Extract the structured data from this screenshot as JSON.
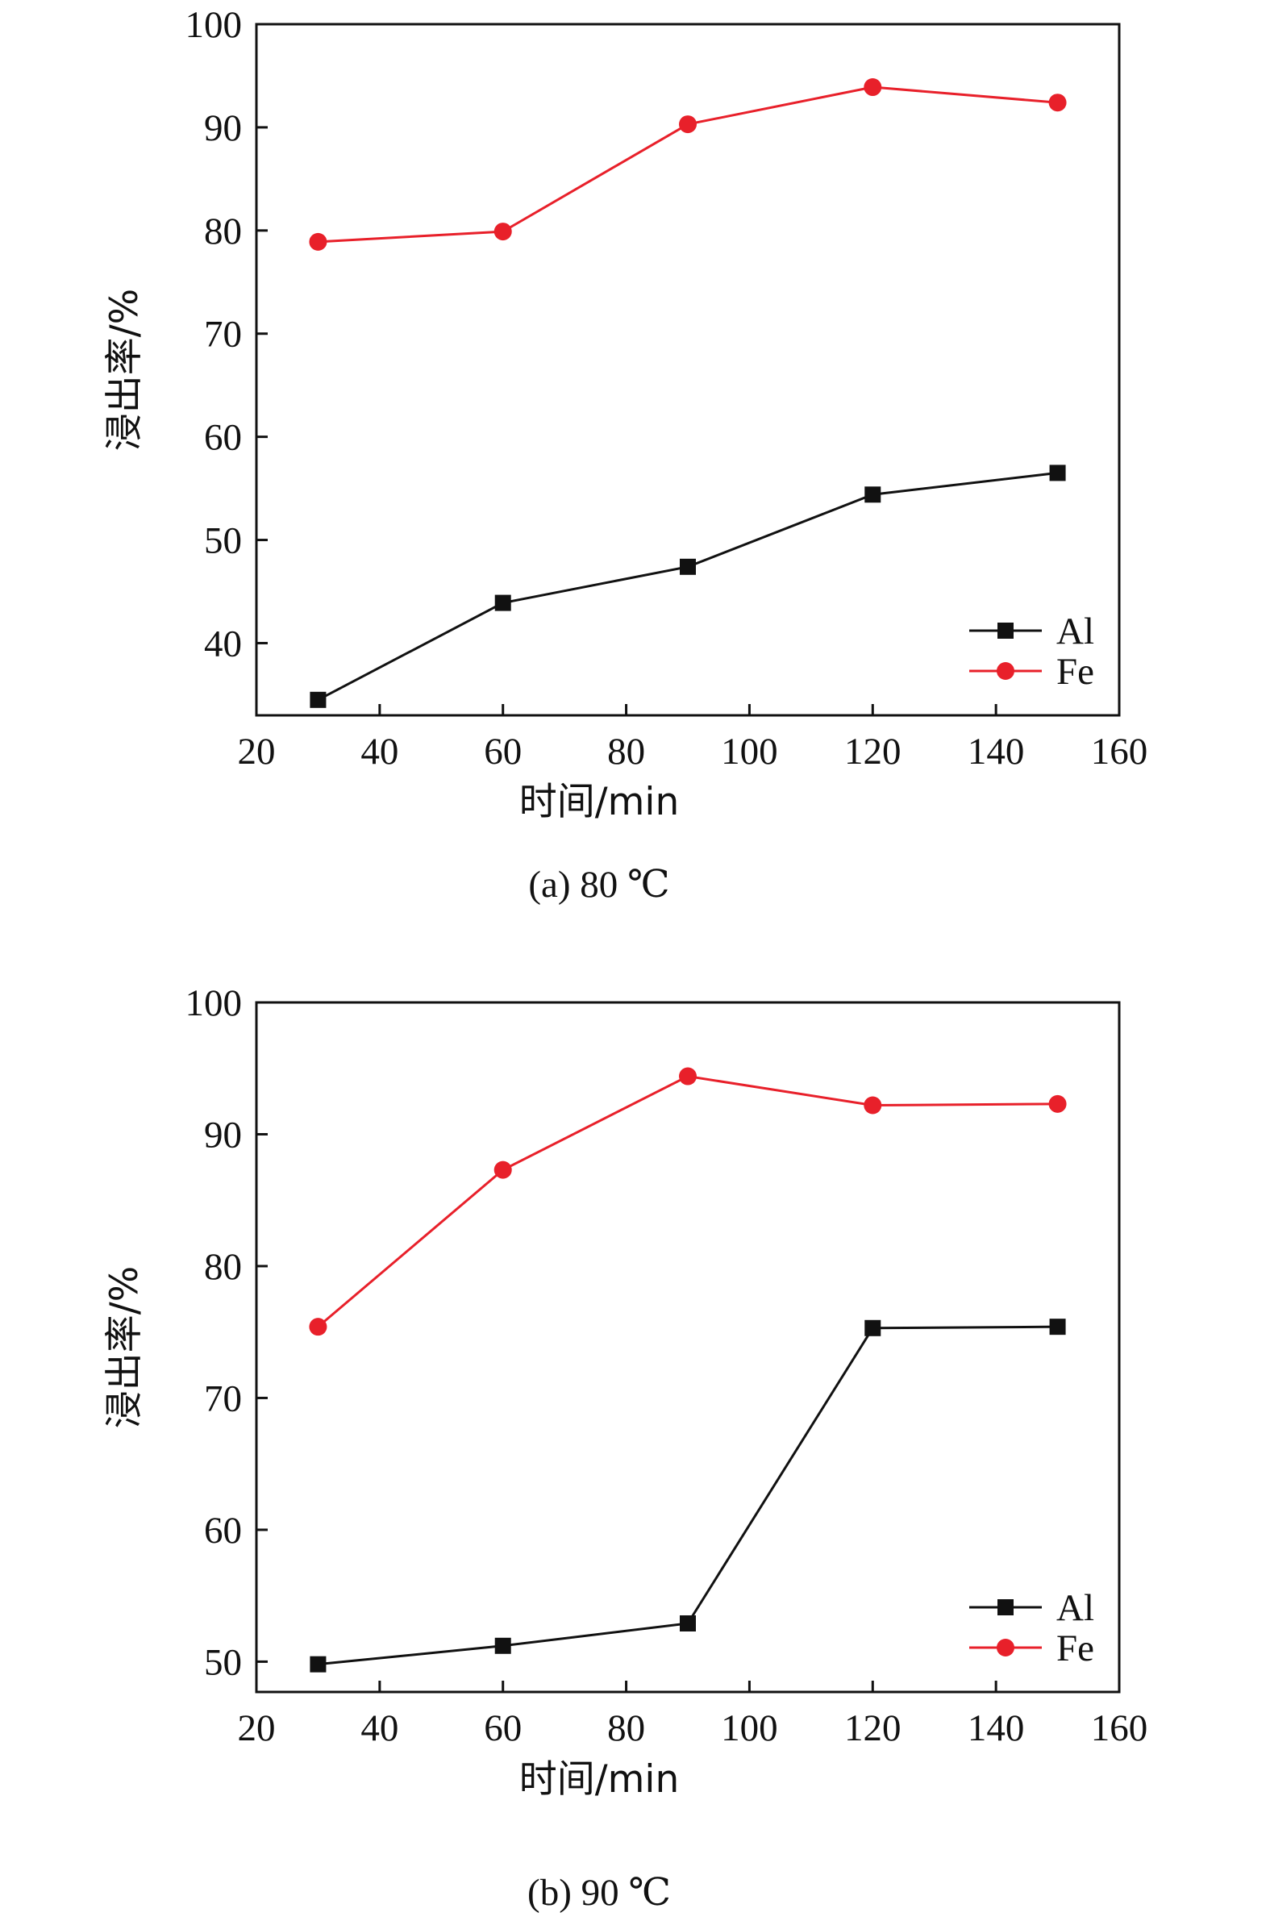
{
  "chart_data": [
    {
      "type": "line",
      "caption": "(a) 80 ℃",
      "xlabel": "时间/min",
      "ylabel": "浸出率/%",
      "xlim": [
        20,
        160
      ],
      "ylim": [
        33,
        100
      ],
      "xticks": [
        20,
        40,
        60,
        80,
        100,
        120,
        140,
        160
      ],
      "yticks": [
        40,
        50,
        60,
        70,
        80,
        90,
        100
      ],
      "x": [
        30,
        60,
        90,
        120,
        150
      ],
      "grid": false,
      "legend_position": "bottom-right",
      "series": [
        {
          "name": "Al",
          "color": "#111111",
          "marker": "square",
          "values": [
            34.5,
            43.9,
            47.4,
            54.4,
            56.5
          ]
        },
        {
          "name": "Fe",
          "color": "#e8202a",
          "marker": "circle",
          "values": [
            78.9,
            79.9,
            90.3,
            93.9,
            92.4
          ]
        }
      ]
    },
    {
      "type": "line",
      "caption": "(b) 90 ℃",
      "xlabel": "时间/min",
      "ylabel": "浸出率/%",
      "xlim": [
        20,
        160
      ],
      "ylim": [
        47.7,
        100
      ],
      "xticks": [
        20,
        40,
        60,
        80,
        100,
        120,
        140,
        160
      ],
      "yticks": [
        50,
        60,
        70,
        80,
        90,
        100
      ],
      "x": [
        30,
        60,
        90,
        120,
        150
      ],
      "grid": false,
      "legend_position": "bottom-right",
      "series": [
        {
          "name": "Al",
          "color": "#111111",
          "marker": "square",
          "values": [
            49.8,
            51.2,
            52.9,
            75.3,
            75.4
          ]
        },
        {
          "name": "Fe",
          "color": "#e8202a",
          "marker": "circle",
          "values": [
            75.4,
            87.3,
            94.4,
            92.2,
            92.3
          ]
        }
      ]
    }
  ]
}
